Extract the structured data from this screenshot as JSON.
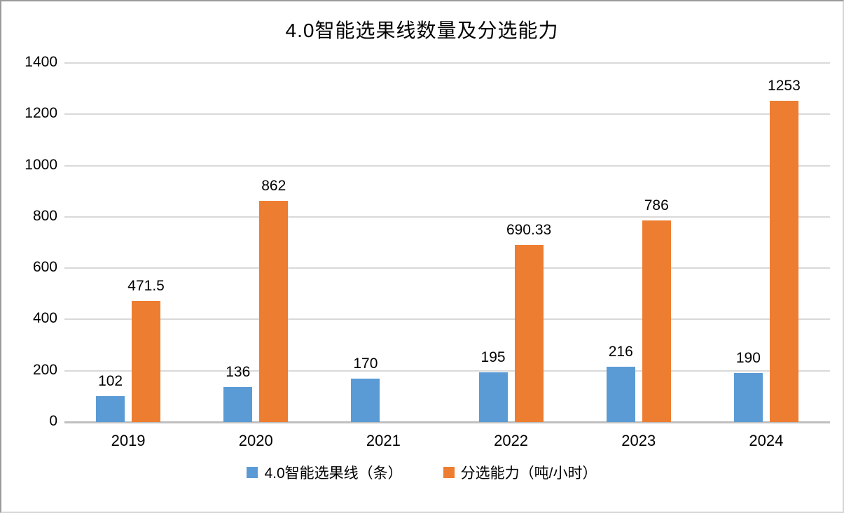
{
  "chart_data": {
    "type": "bar",
    "title": "4.0智能选果线数量及分选能力",
    "categories": [
      "2019",
      "2020",
      "2021",
      "2022",
      "2023",
      "2024"
    ],
    "series": [
      {
        "name": "4.0智能选果线（条）",
        "color": "#5b9bd5",
        "values": [
          102,
          136,
          170,
          195,
          216,
          190
        ]
      },
      {
        "name": "分选能力（吨/小时）",
        "color": "#ed7d31",
        "values": [
          471.5,
          862,
          null,
          690.33,
          786,
          1253
        ]
      }
    ],
    "xlabel": "",
    "ylabel": "",
    "ylim": [
      0,
      1400
    ],
    "ytick_step": 200,
    "yticks": [
      0,
      200,
      400,
      600,
      800,
      1000,
      1200,
      1400
    ],
    "grid": true,
    "gridline_color": "#d9d9d9",
    "axis_line_color": "#bfbfbf",
    "data_labels": true,
    "legend_position": "bottom"
  }
}
